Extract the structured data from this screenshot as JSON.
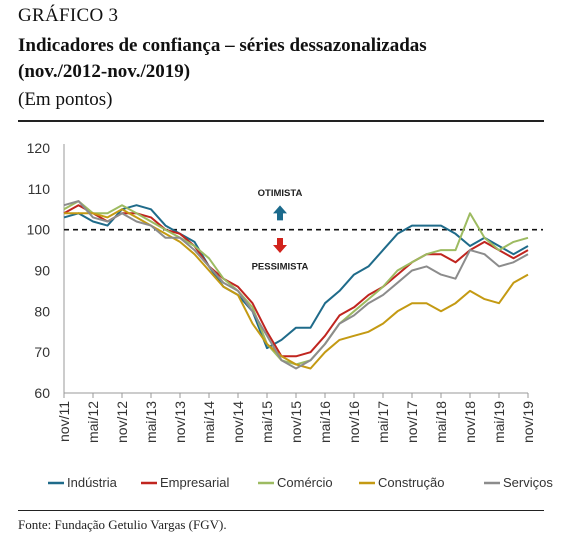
{
  "header": {
    "label": "GRÁFICO 3",
    "title": "Indicadores de confiança – séries dessazonalizadas",
    "subtitle": "(nov./2012-nov./2019)",
    "unit": "(Em pontos)"
  },
  "source": "Fonte: Fundação Getulio Vargas (FGV).",
  "chart_data": {
    "type": "line",
    "ylim": [
      60,
      120
    ],
    "yticks": [
      60,
      70,
      80,
      90,
      100,
      110,
      120
    ],
    "x_ticks": [
      "nov/11",
      "mai/12",
      "nov/12",
      "mai/13",
      "nov/13",
      "mai/14",
      "nov/14",
      "mai/15",
      "nov/15",
      "mai/16",
      "nov/16",
      "mai/17",
      "nov/17",
      "mai/18",
      "nov/18",
      "mai/19",
      "nov/19"
    ],
    "x": [
      "nov/11",
      "fev/12",
      "mai/12",
      "ago/12",
      "nov/12",
      "fev/13",
      "mai/13",
      "ago/13",
      "nov/13",
      "fev/14",
      "mai/14",
      "ago/14",
      "nov/14",
      "fev/15",
      "mai/15",
      "ago/15",
      "nov/15",
      "fev/16",
      "mai/16",
      "ago/16",
      "nov/16",
      "fev/17",
      "mai/17",
      "ago/17",
      "nov/17",
      "fev/18",
      "mai/18",
      "ago/18",
      "nov/18",
      "fev/19",
      "mai/19",
      "ago/19",
      "nov/19"
    ],
    "reference_line": 100,
    "annotations": {
      "up": "OTIMISTA",
      "down": "PESSIMISTA"
    },
    "colors": {
      "up_arrow": "#1b6a8c",
      "down_arrow": "#d1231c"
    },
    "series": [
      {
        "name": "Indústria",
        "color": "#1f6b8a",
        "values": [
          103,
          104,
          102,
          101,
          105,
          106,
          105,
          101,
          99,
          97,
          91,
          86,
          84,
          80,
          71,
          73,
          76,
          76,
          82,
          85,
          89,
          91,
          95,
          99,
          101,
          101,
          101,
          99,
          96,
          98,
          96,
          94,
          96
        ]
      },
      {
        "name": "Empresarial",
        "color": "#c0251f",
        "values": [
          104,
          106,
          104,
          102,
          104,
          104,
          103,
          100,
          99,
          96,
          91,
          88,
          86,
          82,
          75,
          69,
          69,
          70,
          74,
          79,
          81,
          84,
          86,
          89,
          92,
          94,
          94,
          92,
          95,
          97,
          95,
          93,
          95
        ]
      },
      {
        "name": "Comércio",
        "color": "#9dbb61",
        "values": [
          105,
          107,
          104,
          104,
          106,
          104,
          102,
          100,
          98,
          96,
          93,
          88,
          85,
          81,
          72,
          68,
          67,
          68,
          72,
          77,
          80,
          83,
          86,
          90,
          92,
          94,
          95,
          95,
          104,
          98,
          95,
          97,
          98
        ]
      },
      {
        "name": "Construção",
        "color": "#c49a13",
        "values": [
          104,
          104,
          104,
          103,
          105,
          103,
          101,
          99,
          97,
          94,
          90,
          86,
          84,
          77,
          72,
          69,
          67,
          66,
          70,
          73,
          74,
          75,
          77,
          80,
          82,
          82,
          80,
          82,
          85,
          83,
          82,
          87,
          89
        ]
      },
      {
        "name": "Serviços",
        "color": "#8c8c8c",
        "values": [
          106,
          107,
          103,
          102,
          104,
          102,
          101,
          98,
          98,
          95,
          91,
          87,
          85,
          80,
          74,
          68,
          66,
          68,
          72,
          77,
          79,
          82,
          84,
          87,
          90,
          91,
          89,
          88,
          95,
          94,
          91,
          92,
          94
        ]
      }
    ]
  }
}
